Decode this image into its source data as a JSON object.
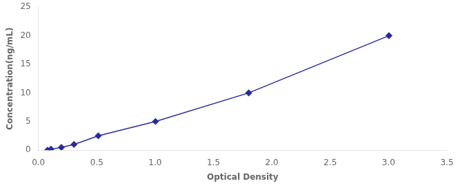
{
  "chart_data": {
    "type": "line",
    "x": [
      0.078,
      0.108,
      0.197,
      0.305,
      0.513,
      1.003,
      1.802,
      3.003
    ],
    "values": [
      0.0,
      0.16,
      0.47,
      1.0,
      2.5,
      5.0,
      10.0,
      20.0
    ],
    "color": "#2929A3",
    "marker": "diamond",
    "xlabel": "Optical Density",
    "ylabel": "Concentration(ng/mL)",
    "xlim": [
      0,
      3.5
    ],
    "ylim": [
      0,
      25
    ],
    "xticks": [
      {
        "value": 0,
        "label": "0.0"
      },
      0.5,
      {
        "value": 1.0,
        "label": "1.0"
      },
      1.5,
      {
        "value": 2.0,
        "label": "2.0"
      },
      2.5,
      {
        "value": 3.0,
        "label": "3.0"
      },
      3.5
    ],
    "yticks": [
      0,
      5,
      10,
      15,
      20,
      25
    ],
    "grid": false
  }
}
